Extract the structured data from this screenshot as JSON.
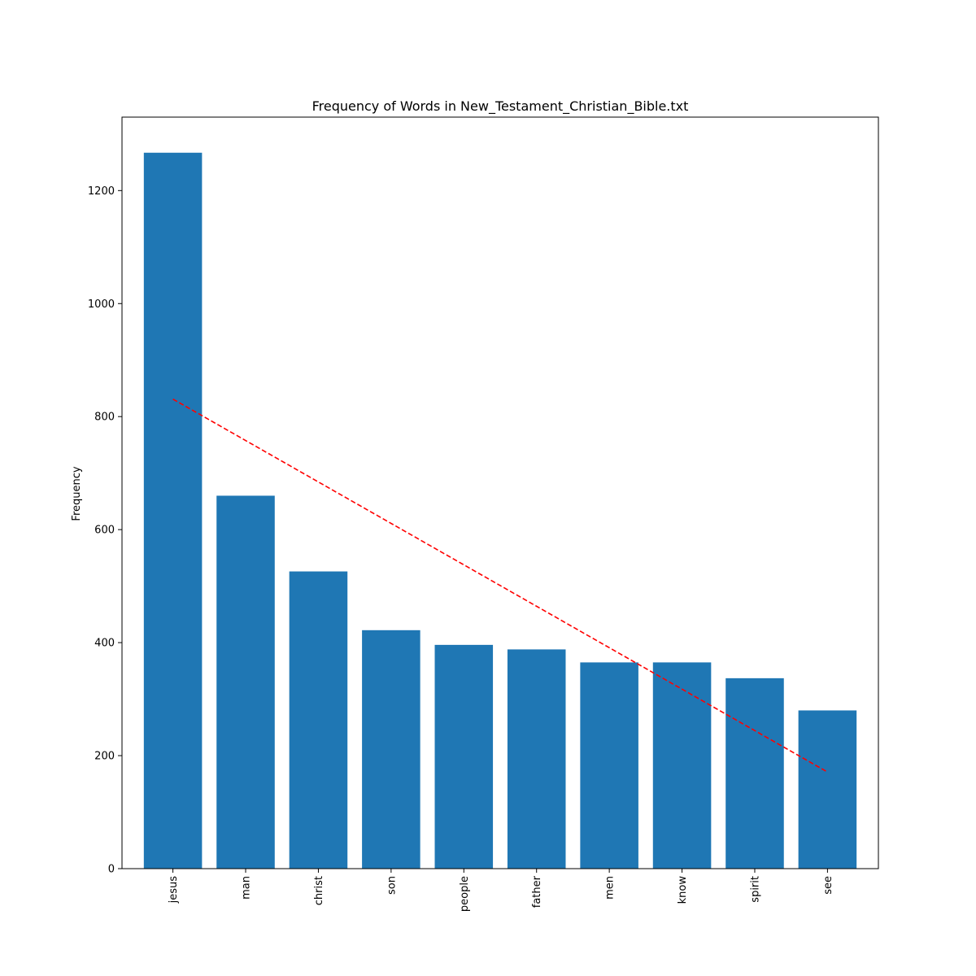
{
  "chart_data": {
    "type": "bar",
    "title": "Frequency of Words in New_Testament_Christian_Bible.txt",
    "xlabel": "",
    "ylabel": "Frequency",
    "categories": [
      "jesus",
      "man",
      "christ",
      "son",
      "people",
      "father",
      "men",
      "know",
      "spirit",
      "see"
    ],
    "values": [
      1267,
      660,
      526,
      422,
      396,
      388,
      365,
      365,
      337,
      280
    ],
    "ylim": [
      0,
      1330
    ],
    "yticks": [
      0,
      200,
      400,
      600,
      800,
      1000,
      1200
    ],
    "bar_color": "#1f77b4",
    "trend_line": {
      "style": "dashed",
      "color": "#ff0000",
      "start": {
        "category": "jesus",
        "value": 831
      },
      "end": {
        "category": "see",
        "value": 171
      }
    },
    "grid": false,
    "legend": "none"
  }
}
